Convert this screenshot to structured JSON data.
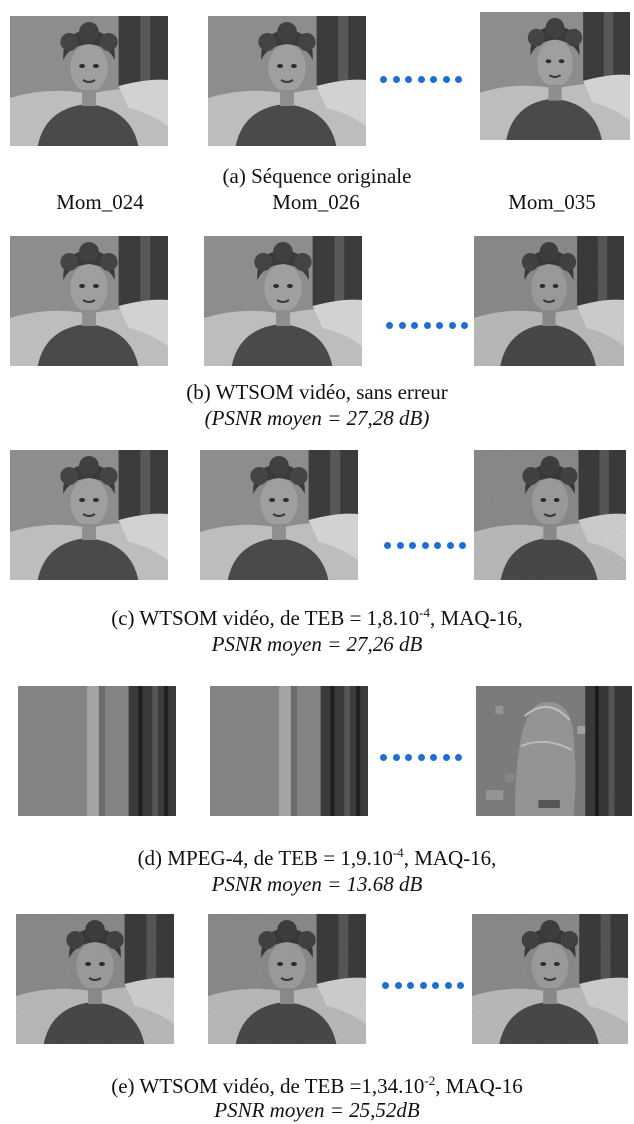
{
  "row_a": {
    "caption": "(a) Séquence originale",
    "frame_labels": [
      "Mom_024",
      "Mom_026",
      "Mom_035"
    ],
    "ellipsis_dots": 7
  },
  "row_b": {
    "caption": "(b) WTSOM vidéo, sans erreur",
    "psnr": "(PSNR moyen = 27,28 dB)"
  },
  "row_c": {
    "caption_pre": "(c) WTSOM vidéo, de TEB = 1,8.10",
    "caption_exp": "-4",
    "caption_post": ", MAQ-16,",
    "psnr": "PSNR moyen = 27,26 dB"
  },
  "row_d": {
    "caption_pre": "(d) MPEG-4, de TEB = 1,9.10",
    "caption_exp": "-4",
    "caption_post": ", MAQ-16,",
    "psnr": "PSNR moyen = 13.68 dB"
  },
  "row_e": {
    "caption_pre": "(e) WTSOM vidéo, de TEB =1,34.10",
    "caption_exp": "-2",
    "caption_post": ", MAQ-16",
    "psnr": "PSNR moyen = 25,52dB"
  },
  "colors": {
    "dots": "#1f6fd1"
  }
}
